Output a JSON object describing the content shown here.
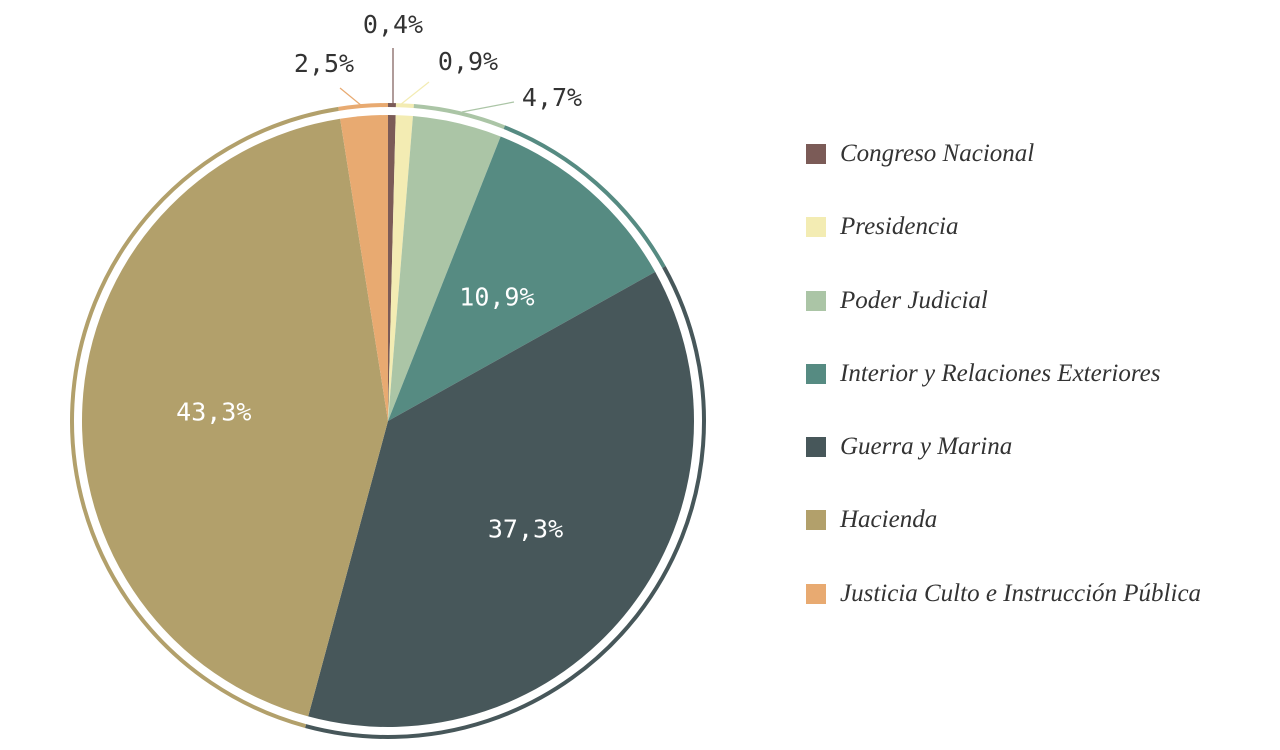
{
  "chart_data": {
    "type": "pie",
    "title": "",
    "slices": [
      {
        "name": "Congreso Nacional",
        "value": 0.4,
        "label": "0,4%",
        "color": "#7b5b57"
      },
      {
        "name": "Presidencia",
        "value": 0.9,
        "label": "0,9%",
        "color": "#f3ecb3"
      },
      {
        "name": "Poder Judicial",
        "value": 4.7,
        "label": "4,7%",
        "color": "#abc5a6"
      },
      {
        "name": "Interior y Relaciones Exteriores",
        "value": 10.9,
        "label": "10,9%",
        "color": "#568b82"
      },
      {
        "name": "Guerra y Marina",
        "value": 37.3,
        "label": "37,3%",
        "color": "#47575a"
      },
      {
        "name": "Hacienda",
        "value": 43.3,
        "label": "43,3%",
        "color": "#b2a06b"
      },
      {
        "name": "Justicia Culto e Instrucción Pública",
        "value": 2.5,
        "label": "2,5%",
        "color": "#e8aa71"
      }
    ],
    "legend": {
      "placement": "right"
    }
  }
}
